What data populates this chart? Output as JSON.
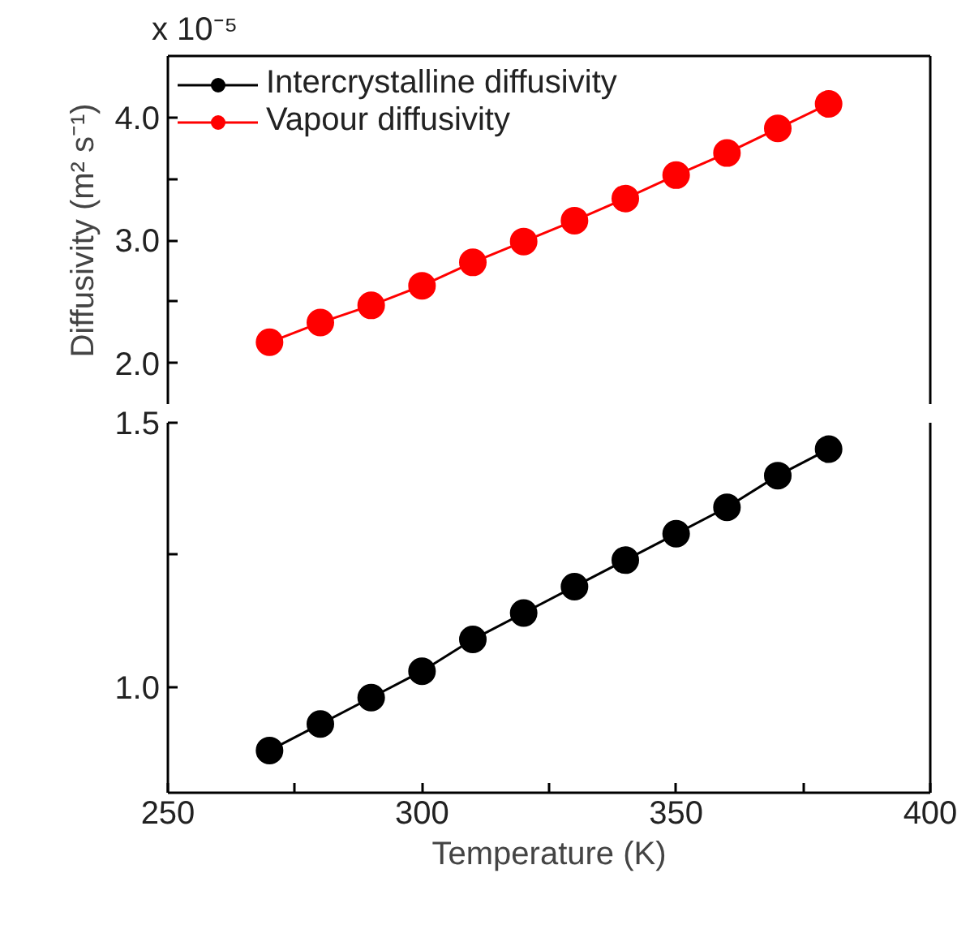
{
  "chart_data": [
    {
      "type": "line",
      "ylabel": "Diffusivity (m² s⁻¹)",
      "annotations": [
        "x 10⁻⁵"
      ],
      "x": [
        270,
        280,
        290,
        300,
        310,
        320,
        330,
        340,
        350,
        360,
        370,
        380
      ],
      "series": [
        {
          "name": "Vapour diffusivity",
          "color": "#ff0000",
          "values": [
            2.17,
            2.33,
            2.47,
            2.63,
            2.82,
            2.99,
            3.16,
            3.34,
            3.53,
            3.71,
            3.91,
            4.11
          ]
        }
      ],
      "xlim": [
        250,
        400
      ],
      "ylim": [
        1.66,
        4.5
      ],
      "yticks": [
        {
          "value": 2.0,
          "label": "2.0"
        },
        {
          "value": 2.5,
          "label": null
        },
        {
          "value": 3.0,
          "label": "3.0"
        },
        {
          "value": 3.5,
          "label": null
        },
        {
          "value": 4.0,
          "label": "4.0"
        }
      ],
      "tick_labels": "y",
      "legend": "top left",
      "marker": "circle",
      "grid": false
    },
    {
      "type": "line",
      "xlabel": "Temperature (K)",
      "x": [
        270,
        280,
        290,
        300,
        310,
        320,
        330,
        340,
        350,
        360,
        370,
        380
      ],
      "series": [
        {
          "name": "Intercrystalline diffusivity",
          "color": "#000000",
          "values": [
            0.88,
            0.93,
            0.98,
            1.03,
            1.09,
            1.14,
            1.19,
            1.24,
            1.29,
            1.34,
            1.4,
            1.45
          ]
        }
      ],
      "xlim": [
        250,
        400
      ],
      "ylim": [
        0.8,
        1.5
      ],
      "xticks": [
        250,
        {
          "value": 275,
          "label": null
        },
        300,
        {
          "value": 325,
          "label": null
        },
        350,
        {
          "value": 375,
          "label": null
        },
        400
      ],
      "yticks": [
        {
          "value": 1.0,
          "label": "1.0"
        },
        {
          "value": 1.25,
          "label": null
        },
        {
          "value": 1.5,
          "label": "1.5"
        }
      ],
      "marker": "circle",
      "grid": false
    }
  ]
}
